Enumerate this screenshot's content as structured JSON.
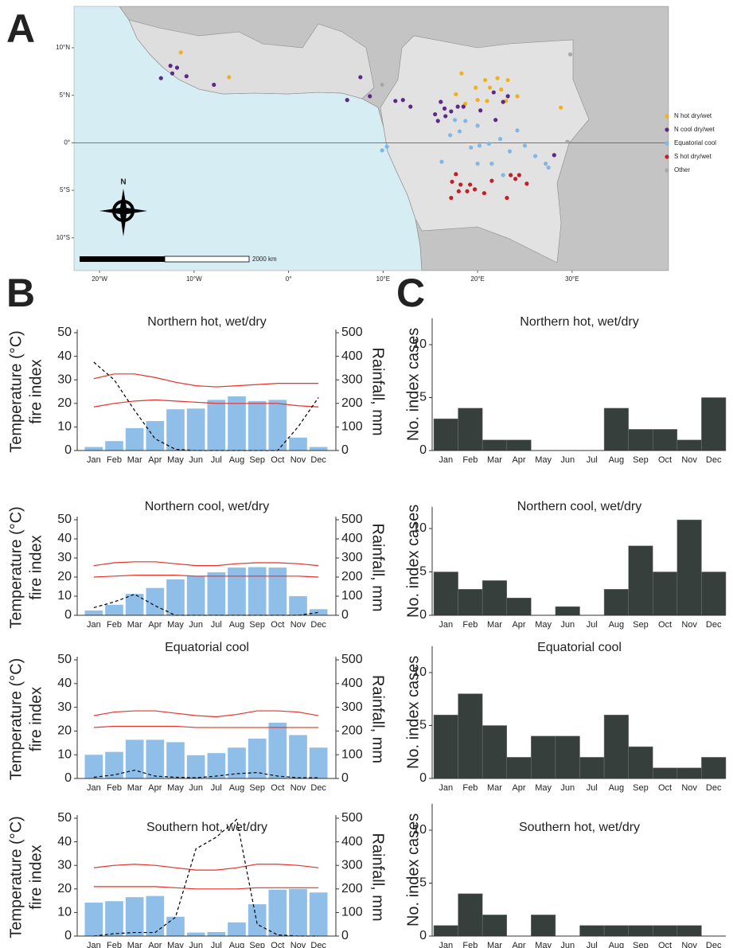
{
  "panel_labels": [
    "A",
    "B",
    "C"
  ],
  "chart_data": [
    {
      "type": "scatter",
      "legend": "right",
      "scale_bar_label": "2000 km",
      "north_label": "N",
      "xlim": [
        -22.7,
        40.2
      ],
      "ylim": [
        -13.45,
        14.35
      ],
      "xticks": [
        {
          "value": -20,
          "label": "20°W"
        },
        {
          "value": -10,
          "label": "10°W"
        },
        {
          "value": 0,
          "label": "0°"
        },
        {
          "value": 10,
          "label": "10°E"
        },
        {
          "value": 20,
          "label": "20°E"
        },
        {
          "value": 30,
          "label": "30°E"
        }
      ],
      "yticks": [
        {
          "value": 10,
          "label": "10°N"
        },
        {
          "value": 5,
          "label": "5°N"
        },
        {
          "value": 0,
          "label": "0°"
        },
        {
          "value": -5,
          "label": "5°S"
        },
        {
          "value": -10,
          "label": "10°S"
        }
      ],
      "series": [
        {
          "name": "N hot dry/wet",
          "color": "#f2b01e",
          "x": [
            -11.4,
            -6.3,
            18.3,
            20.8,
            22.1,
            23.2,
            19.8,
            21.3,
            22.5,
            24.2,
            17.7,
            21.0,
            23.0,
            18.7,
            28.8,
            20.0
          ],
          "values": [
            9.5,
            6.9,
            7.3,
            6.6,
            6.8,
            6.6,
            5.8,
            5.8,
            5.6,
            4.9,
            5.1,
            4.4,
            4.4,
            4.1,
            3.7,
            4.5
          ]
        },
        {
          "name": "N cool dry/wet",
          "color": "#5b2a86",
          "x": [
            -12.5,
            -11.8,
            -12.3,
            -10.8,
            -13.5,
            -7.9,
            7.6,
            6.2,
            8.6,
            11.3,
            12.1,
            12.9,
            16.1,
            16.5,
            17.2,
            17.9,
            18.5,
            16.6,
            15.5,
            15.8,
            21.7,
            22.7,
            23.2,
            20.3,
            21.9,
            28.1
          ],
          "values": [
            8.1,
            7.9,
            7.3,
            7.0,
            6.8,
            6.1,
            6.9,
            4.5,
            4.9,
            4.4,
            4.5,
            3.8,
            4.3,
            3.6,
            3.3,
            3.8,
            3.8,
            2.8,
            3.0,
            2.3,
            5.3,
            4.3,
            4.9,
            3.4,
            2.4,
            -1.3
          ]
        },
        {
          "name": "Equatorial cool",
          "color": "#7fb8e6",
          "x": [
            10.4,
            9.9,
            17.6,
            18.7,
            17.1,
            18.1,
            20.0,
            21.2,
            22.4,
            24.2,
            25.0,
            19.3,
            20.2,
            23.4,
            16.2,
            20.0,
            27.2,
            27.5,
            21.5,
            22.7,
            26.1
          ],
          "values": [
            -0.4,
            -0.8,
            2.4,
            2.3,
            0.8,
            1.2,
            1.8,
            -0.1,
            0.4,
            1.3,
            -0.3,
            -0.5,
            -0.3,
            -0.9,
            -2.0,
            -2.2,
            -2.2,
            -2.6,
            -2.2,
            -3.4,
            -1.4
          ]
        },
        {
          "name": "S hot dry/wet",
          "color": "#c0202a",
          "x": [
            17.7,
            17.3,
            18.2,
            18.0,
            19.7,
            21.5,
            23.5,
            24.4,
            24.0,
            25.2,
            19.2,
            17.2,
            20.7,
            18.9,
            23.1
          ],
          "values": [
            -3.3,
            -4.1,
            -4.4,
            -5.1,
            -4.9,
            -4.0,
            -3.4,
            -3.4,
            -3.8,
            -4.3,
            -4.4,
            -5.8,
            -5.3,
            -5.1,
            -5.8
          ]
        },
        {
          "name": "Other",
          "color": "#a8a8a8",
          "x": [
            29.8,
            9.9,
            29.5
          ],
          "values": [
            9.3,
            6.1,
            0.1
          ]
        }
      ]
    },
    {
      "type": "bar",
      "title": "Northern hot, wet/dry",
      "categories": [
        "Jan",
        "Feb",
        "Mar",
        "Apr",
        "May",
        "Jun",
        "Jul",
        "Aug",
        "Sep",
        "Oct",
        "Nov",
        "Dec"
      ],
      "ylabel": [
        "Temperature (°C)",
        "fire index"
      ],
      "y2label": "Rainfall, mm",
      "ylim": [
        0,
        50
      ],
      "yticks": [
        0,
        10,
        20,
        30,
        40,
        50
      ],
      "y2lim": [
        0,
        500
      ],
      "y2ticks": [
        0,
        100,
        200,
        300,
        400,
        500
      ],
      "series": [
        {
          "type": "bar",
          "axis": "y2",
          "color": "#8fbfe8",
          "values": [
            15,
            40,
            95,
            125,
            175,
            178,
            215,
            230,
            210,
            215,
            55,
            15
          ]
        },
        {
          "type": "line",
          "color": "#e8302a",
          "values": [
            30.5,
            32.5,
            32.5,
            31,
            29,
            27.5,
            27,
            27.5,
            28,
            28.5,
            28.5,
            28.5
          ]
        },
        {
          "type": "line",
          "color": "#e8302a",
          "values": [
            18.5,
            20,
            21,
            21.5,
            21,
            20.5,
            20,
            20,
            20,
            20,
            19,
            18.5
          ]
        },
        {
          "type": "line",
          "dash": true,
          "color": "#000000",
          "values": [
            37.5,
            30,
            17,
            5,
            0.5,
            0,
            0,
            0,
            0,
            0,
            10,
            22.5
          ]
        }
      ]
    },
    {
      "type": "bar",
      "title": "Northern cool, wet/dry",
      "categories": [
        "Jan",
        "Feb",
        "Mar",
        "Apr",
        "May",
        "Jun",
        "Jul",
        "Aug",
        "Sep",
        "Oct",
        "Nov",
        "Dec"
      ],
      "ylabel": [
        "Temperature (°C)",
        "fire index"
      ],
      "y2label": "Rainfall, mm",
      "ylim": [
        0,
        50
      ],
      "yticks": [
        0,
        10,
        20,
        30,
        40,
        50
      ],
      "y2lim": [
        0,
        500
      ],
      "y2ticks": [
        0,
        100,
        200,
        300,
        400,
        500
      ],
      "series": [
        {
          "type": "bar",
          "axis": "y2",
          "color": "#8fbfe8",
          "values": [
            25,
            55,
            112,
            143,
            188,
            205,
            225,
            250,
            252,
            250,
            100,
            32
          ]
        },
        {
          "type": "line",
          "color": "#e8302a",
          "values": [
            26,
            27.5,
            28,
            28,
            27,
            26,
            26,
            27,
            27.5,
            27.5,
            27,
            26
          ]
        },
        {
          "type": "line",
          "color": "#e8302a",
          "values": [
            20,
            20.5,
            21,
            21,
            21,
            20.5,
            20.5,
            20.5,
            20.5,
            20.5,
            20.5,
            20
          ]
        },
        {
          "type": "line",
          "dash": true,
          "color": "#000000",
          "values": [
            4,
            7,
            11,
            5,
            0,
            0,
            0,
            0,
            0,
            0,
            0,
            1.5
          ]
        }
      ]
    },
    {
      "type": "bar",
      "title": "Equatorial cool",
      "categories": [
        "Jan",
        "Feb",
        "Mar",
        "Apr",
        "May",
        "Jun",
        "Jul",
        "Aug",
        "Sep",
        "Oct",
        "Nov",
        "Dec"
      ],
      "ylabel": [
        "Temperature (°C)",
        "fire index"
      ],
      "y2label": "Rainfall, mm",
      "ylim": [
        0,
        50
      ],
      "yticks": [
        0,
        10,
        20,
        30,
        40,
        50
      ],
      "y2lim": [
        0,
        500
      ],
      "y2ticks": [
        0,
        100,
        200,
        300,
        400,
        500
      ],
      "series": [
        {
          "type": "bar",
          "axis": "y2",
          "color": "#8fbfe8",
          "values": [
            100,
            112,
            163,
            163,
            153,
            98,
            107,
            130,
            168,
            235,
            183,
            130
          ]
        },
        {
          "type": "line",
          "color": "#e8302a",
          "values": [
            26.5,
            28,
            28.5,
            28.5,
            27.5,
            26.5,
            26,
            27,
            28.5,
            28.5,
            28,
            26.5
          ]
        },
        {
          "type": "line",
          "color": "#e8302a",
          "values": [
            21.5,
            22,
            22,
            22,
            22,
            21.5,
            21.5,
            21.5,
            21.5,
            21.5,
            21.5,
            21.5
          ]
        },
        {
          "type": "line",
          "dash": true,
          "color": "#000000",
          "values": [
            0.5,
            1.5,
            3.5,
            1,
            0.5,
            0.3,
            1,
            2,
            2.5,
            1,
            0.3,
            0.3
          ]
        }
      ]
    },
    {
      "type": "bar",
      "title": "Southern hot, wet/dry",
      "categories": [
        "Jan",
        "Feb",
        "Mar",
        "Apr",
        "May",
        "Jun",
        "Jul",
        "Aug",
        "Sep",
        "Oct",
        "Nov",
        "Dec"
      ],
      "ylabel": [
        "Temperature (°C)",
        "fire index"
      ],
      "y2label": "Rainfall, mm",
      "ylim": [
        0,
        50
      ],
      "yticks": [
        0,
        10,
        20,
        30,
        40,
        50
      ],
      "y2lim": [
        0,
        500
      ],
      "y2ticks": [
        0,
        100,
        200,
        300,
        400,
        500
      ],
      "series": [
        {
          "type": "bar",
          "axis": "y2",
          "color": "#8fbfe8",
          "values": [
            142,
            148,
            165,
            170,
            82,
            15,
            17,
            58,
            135,
            197,
            200,
            185
          ]
        },
        {
          "type": "line",
          "color": "#e8302a",
          "values": [
            29,
            30,
            30.5,
            30,
            29,
            28,
            28,
            29,
            30.5,
            30.5,
            30,
            29
          ]
        },
        {
          "type": "line",
          "color": "#e8302a",
          "values": [
            21,
            21,
            21,
            21,
            20.5,
            20,
            20,
            20,
            20.5,
            20.5,
            20.5,
            20.5
          ]
        },
        {
          "type": "line",
          "dash": true,
          "color": "#000000",
          "values": [
            0,
            1,
            1.5,
            1.5,
            8,
            37,
            42,
            49.5,
            5,
            0.5,
            0,
            0
          ]
        }
      ]
    },
    {
      "type": "bar",
      "title": "Northern hot, wet/dry",
      "categories": [
        "Jan",
        "Feb",
        "Mar",
        "Apr",
        "May",
        "Jun",
        "Jul",
        "Aug",
        "Sep",
        "Oct",
        "Nov",
        "Dec"
      ],
      "values": [
        3,
        4,
        1,
        1,
        0,
        0,
        0,
        4,
        2,
        2,
        1,
        5
      ],
      "color": "#373f3d",
      "ylabel": "No. index cases",
      "ylim": [
        0,
        12.5
      ],
      "yticks": [
        0,
        5,
        10
      ]
    },
    {
      "type": "bar",
      "title": "Northern cool, wet/dry",
      "categories": [
        "Jan",
        "Feb",
        "Mar",
        "Apr",
        "May",
        "Jun",
        "Jul",
        "Aug",
        "Sep",
        "Oct",
        "Nov",
        "Dec"
      ],
      "values": [
        5,
        3,
        4,
        2,
        0,
        1,
        0,
        3,
        8,
        5,
        11,
        5
      ],
      "color": "#373f3d",
      "ylabel": "No. index cases",
      "ylim": [
        0,
        12.5
      ],
      "yticks": [
        0,
        5,
        10
      ]
    },
    {
      "type": "bar",
      "title": "Equatorial cool",
      "categories": [
        "Jan",
        "Feb",
        "Mar",
        "Apr",
        "May",
        "Jun",
        "Jul",
        "Aug",
        "Sep",
        "Oct",
        "Nov",
        "Dec"
      ],
      "values": [
        6,
        8,
        5,
        2,
        4,
        4,
        2,
        6,
        3,
        1,
        1,
        2
      ],
      "color": "#373f3d",
      "ylabel": "No. index cases",
      "ylim": [
        0,
        12.5
      ],
      "yticks": [
        0,
        5,
        10
      ]
    },
    {
      "type": "bar",
      "title": "Southern hot, wet/dry",
      "categories": [
        "Jan",
        "Feb",
        "Mar",
        "Apr",
        "May",
        "Jun",
        "Jul",
        "Aug",
        "Sep",
        "Oct",
        "Nov",
        "Dec"
      ],
      "values": [
        1,
        4,
        2,
        0,
        2,
        0,
        1,
        1,
        1,
        1,
        1,
        0
      ],
      "color": "#373f3d",
      "ylabel": "No. index cases",
      "ylim": [
        0,
        12.5
      ],
      "yticks": [
        0,
        5,
        10
      ]
    }
  ]
}
